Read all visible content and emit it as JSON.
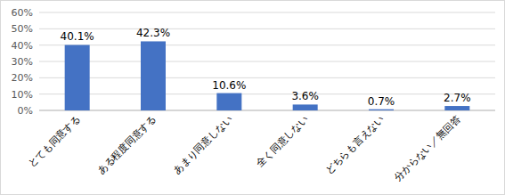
{
  "chart_data": {
    "type": "bar",
    "categories": [
      "とても同意する",
      "ある程度同意する",
      "あまり同意しない",
      "全く同意しない",
      "どちらも言えない",
      "分からない／無回答"
    ],
    "values": [
      40.1,
      42.3,
      10.6,
      3.6,
      0.7,
      2.7
    ],
    "value_labels": [
      "40.1%",
      "42.3%",
      "10.6%",
      "3.6%",
      "0.7%",
      "2.7%"
    ],
    "color": "#4472c4",
    "ylim": [
      0,
      60
    ],
    "yticks": [
      {
        "value": 0,
        "label": "0%"
      },
      {
        "value": 10,
        "label": "10%"
      },
      {
        "value": 20,
        "label": "20%"
      },
      {
        "value": 30,
        "label": "30%"
      },
      {
        "value": 40,
        "label": "40%"
      },
      {
        "value": 50,
        "label": "50%"
      },
      {
        "value": 60,
        "label": "60%"
      }
    ],
    "grid": true,
    "data_labels": true
  }
}
